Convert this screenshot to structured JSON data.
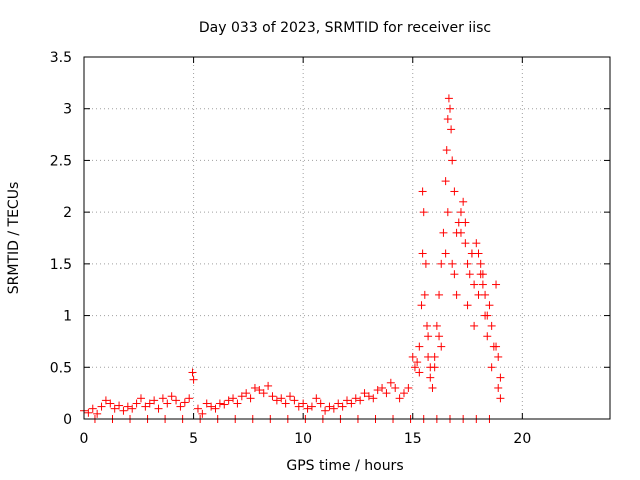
{
  "chart_data": {
    "type": "scatter",
    "title": "Day 033 of 2023, SRMTID for receiver iisc",
    "xlabel": "GPS time / hours",
    "ylabel": "SRMTID / TECUs",
    "xlim": [
      0,
      24
    ],
    "ylim": [
      0,
      3.5
    ],
    "xticks": [
      0,
      5,
      10,
      15,
      20
    ],
    "xtick_labels": [
      "0",
      "5",
      "10",
      "15",
      "20"
    ],
    "yticks": [
      0,
      0.5,
      1,
      1.5,
      2,
      2.5,
      3,
      3.5
    ],
    "ytick_labels": [
      "0",
      "0.5",
      "1",
      "1.5",
      "2",
      "2.5",
      "3",
      "3.5"
    ],
    "grid": true,
    "marker": "+",
    "marker_color": "#ff0000",
    "series": [
      {
        "name": "SRMTID",
        "x": [
          0.0,
          0.2,
          0.4,
          0.6,
          0.8,
          1.0,
          1.2,
          1.4,
          1.6,
          1.8,
          2.0,
          2.2,
          2.4,
          2.6,
          2.8,
          3.0,
          3.2,
          3.4,
          3.6,
          3.8,
          4.0,
          4.2,
          4.4,
          4.6,
          4.8,
          4.95,
          5.0,
          5.2,
          5.4,
          5.6,
          5.8,
          6.0,
          6.2,
          6.4,
          6.6,
          6.8,
          7.0,
          7.2,
          7.4,
          7.6,
          7.8,
          8.0,
          8.2,
          8.4,
          8.6,
          8.8,
          9.0,
          9.2,
          9.4,
          9.6,
          9.8,
          10.0,
          10.2,
          10.4,
          10.6,
          10.8,
          11.0,
          11.2,
          11.4,
          11.6,
          11.8,
          12.0,
          12.2,
          12.4,
          12.6,
          12.8,
          13.0,
          13.2,
          13.4,
          13.6,
          13.8,
          14.0,
          14.2,
          14.4,
          14.6,
          14.8,
          15.0,
          15.1,
          15.2,
          15.3,
          15.4,
          15.45,
          15.5,
          15.6,
          15.7,
          15.8,
          15.9,
          16.0,
          16.1,
          16.2,
          16.3,
          16.4,
          16.5,
          16.55,
          16.6,
          16.65,
          16.7,
          16.75,
          16.8,
          16.9,
          17.0,
          17.1,
          17.2,
          17.3,
          17.4,
          17.5,
          17.6,
          17.7,
          17.8,
          17.9,
          18.0,
          18.1,
          18.2,
          18.3,
          18.4,
          18.5,
          18.6,
          18.7,
          18.8,
          18.9,
          19.0,
          0.5,
          1.3,
          2.1,
          2.9,
          3.7,
          4.5,
          5.3,
          6.1,
          6.9,
          7.7,
          8.5,
          9.3,
          10.1,
          10.9,
          11.7,
          12.5,
          13.3,
          14.1,
          14.9,
          15.5,
          16.1,
          16.7,
          17.3,
          17.9,
          18.5,
          15.45,
          15.55,
          15.65,
          15.8,
          16.0,
          16.3,
          16.5,
          16.6,
          16.8,
          17.0,
          17.2,
          17.5,
          17.8,
          18.0,
          18.2,
          18.4,
          18.6,
          18.9,
          15.3,
          15.7,
          16.2,
          16.9,
          17.4,
          17.7,
          18.1,
          18.3,
          18.8,
          19.0
        ],
        "y": [
          0.08,
          0.06,
          0.1,
          0.05,
          0.12,
          0.18,
          0.15,
          0.1,
          0.13,
          0.08,
          0.12,
          0.1,
          0.15,
          0.2,
          0.12,
          0.15,
          0.18,
          0.1,
          0.2,
          0.15,
          0.22,
          0.18,
          0.12,
          0.16,
          0.2,
          0.45,
          0.38,
          0.1,
          0.05,
          0.15,
          0.12,
          0.1,
          0.15,
          0.14,
          0.18,
          0.2,
          0.15,
          0.22,
          0.25,
          0.2,
          0.3,
          0.28,
          0.25,
          0.32,
          0.22,
          0.18,
          0.2,
          0.15,
          0.22,
          0.18,
          0.12,
          0.15,
          0.1,
          0.12,
          0.2,
          0.15,
          0.08,
          0.12,
          0.1,
          0.15,
          0.12,
          0.18,
          0.15,
          0.2,
          0.18,
          0.25,
          0.22,
          0.2,
          0.28,
          0.3,
          0.25,
          0.35,
          0.3,
          0.2,
          0.25,
          0.3,
          0.6,
          0.5,
          0.55,
          0.7,
          1.1,
          2.2,
          2.0,
          1.5,
          0.8,
          0.5,
          0.3,
          0.6,
          0.9,
          1.2,
          1.5,
          1.8,
          2.3,
          2.6,
          2.9,
          3.1,
          3.0,
          2.8,
          2.5,
          2.2,
          1.8,
          1.9,
          2.0,
          2.1,
          1.7,
          1.5,
          1.4,
          1.6,
          1.3,
          1.7,
          1.2,
          1.5,
          1.4,
          1.0,
          0.8,
          1.1,
          0.9,
          0.7,
          1.3,
          0.6,
          0.4,
          0.0,
          0.0,
          0.0,
          0.0,
          0.0,
          0.0,
          0.0,
          0.0,
          0.0,
          0.0,
          0.0,
          0.0,
          0.0,
          0.0,
          0.0,
          0.0,
          0.0,
          0.0,
          0.0,
          0.0,
          0.0,
          0.0,
          0.0,
          0.0,
          0.0,
          1.6,
          1.2,
          0.9,
          0.4,
          0.5,
          0.7,
          1.6,
          2.0,
          1.5,
          1.2,
          1.8,
          1.1,
          0.9,
          1.6,
          1.3,
          1.0,
          0.5,
          0.3,
          0.45,
          0.6,
          0.8,
          1.4,
          1.9,
          1.6,
          1.4,
          1.2,
          0.7,
          0.2
        ]
      }
    ]
  }
}
